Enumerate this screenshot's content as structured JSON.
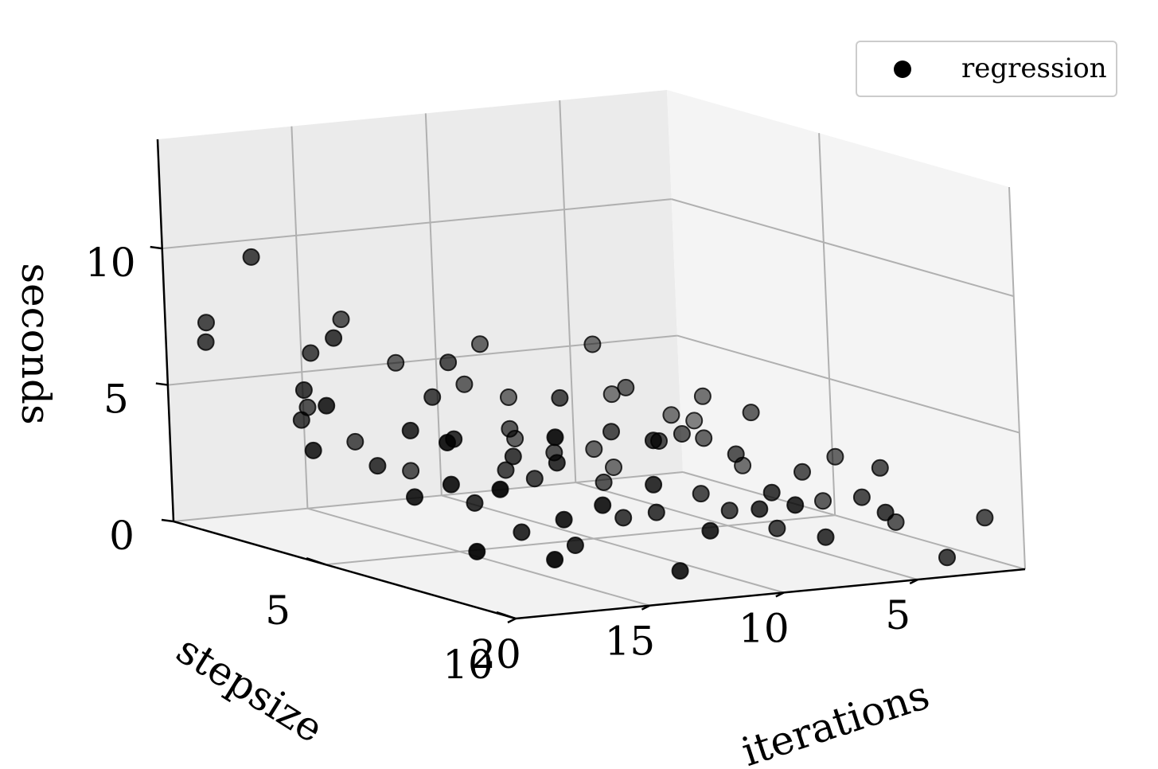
{
  "chart_data": {
    "type": "scatter3d",
    "title": "",
    "xlabel": "iterations",
    "ylabel": "stepsize",
    "zlabel": "seconds",
    "xlim": [
      1,
      20
    ],
    "ylim": [
      1,
      10
    ],
    "zlim": [
      0,
      14
    ],
    "xticks": [
      "5",
      "10",
      "15",
      "20"
    ],
    "yticks": [
      "5",
      "10"
    ],
    "zticks": [
      "0",
      "5",
      "10"
    ],
    "grid": true,
    "legend_position": "top-right",
    "colors": {
      "marker": "#000000",
      "pane": "#f2f2f2",
      "grid": "#b0b0b0"
    },
    "series": [
      {
        "name": "regression",
        "points": [
          [
            1.2,
            1.5,
            2.1
          ],
          [
            3.8,
            1.2,
            3.2
          ],
          [
            5.1,
            2.1,
            1.0
          ],
          [
            7.5,
            1.1,
            3.4
          ],
          [
            9.0,
            2.3,
            2.5
          ],
          [
            11.5,
            1.0,
            5.0
          ],
          [
            13.2,
            2.5,
            1.8
          ],
          [
            15.4,
            1.4,
            3.9
          ],
          [
            17.6,
            2.8,
            4.2
          ],
          [
            19.5,
            1.7,
            6.8
          ],
          [
            2.4,
            3.6,
            1.4
          ],
          [
            4.5,
            4.1,
            2.8
          ],
          [
            6.2,
            3.3,
            4.5
          ],
          [
            8.7,
            4.4,
            1.7
          ],
          [
            10.3,
            3.1,
            3.3
          ],
          [
            12.6,
            4.6,
            2.6
          ],
          [
            14.1,
            3.8,
            5.1
          ],
          [
            16.8,
            4.2,
            3.0
          ],
          [
            18.3,
            3.4,
            5.6
          ],
          [
            20.0,
            4.8,
            4.1
          ],
          [
            1.6,
            5.5,
            2.4
          ],
          [
            3.1,
            6.2,
            1.2
          ],
          [
            5.7,
            5.8,
            3.0
          ],
          [
            7.9,
            6.4,
            2.0
          ],
          [
            9.6,
            5.3,
            4.0
          ],
          [
            11.1,
            6.6,
            1.5
          ],
          [
            13.7,
            5.6,
            3.6
          ],
          [
            15.9,
            6.1,
            2.3
          ],
          [
            17.2,
            5.4,
            4.8
          ],
          [
            19.1,
            6.8,
            3.1
          ],
          [
            2.1,
            7.4,
            0.8
          ],
          [
            4.3,
            8.1,
            2.2
          ],
          [
            6.8,
            7.6,
            1.1
          ],
          [
            8.2,
            8.5,
            2.9
          ],
          [
            10.7,
            7.2,
            1.9
          ],
          [
            12.3,
            8.3,
            3.5
          ],
          [
            14.6,
            7.8,
            1.3
          ],
          [
            16.1,
            8.6,
            2.7
          ],
          [
            18.7,
            7.5,
            3.8
          ],
          [
            19.8,
            8.9,
            2.0
          ],
          [
            1.3,
            9.2,
            1.6
          ],
          [
            3.6,
            9.8,
            0.6
          ],
          [
            5.4,
            9.5,
            2.3
          ],
          [
            7.1,
            9.1,
            1.4
          ],
          [
            9.3,
            9.9,
            3.1
          ],
          [
            11.8,
            9.4,
            2.2
          ],
          [
            13.4,
            9.7,
            1.0
          ],
          [
            15.2,
            9.0,
            3.3
          ],
          [
            17.9,
            9.6,
            1.8
          ],
          [
            19.4,
            9.3,
            4.4
          ],
          [
            2.8,
            2.9,
            3.7
          ],
          [
            6.5,
            2.6,
            2.0
          ],
          [
            10.1,
            1.8,
            4.4
          ],
          [
            14.8,
            2.2,
            2.9
          ],
          [
            18.9,
            1.3,
            7.3
          ],
          [
            4.1,
            5.1,
            4.1
          ],
          [
            8.4,
            5.7,
            3.7
          ],
          [
            12.1,
            5.0,
            2.4
          ],
          [
            16.3,
            5.9,
            4.6
          ],
          [
            20.0,
            5.2,
            5.9
          ],
          [
            3.3,
            7.9,
            3.1
          ],
          [
            7.7,
            7.0,
            1.6
          ],
          [
            11.4,
            7.7,
            4.8
          ],
          [
            15.6,
            7.1,
            1.6
          ],
          [
            19.2,
            7.8,
            5.5
          ],
          [
            5.0,
            1.6,
            5.3
          ],
          [
            9.8,
            3.9,
            2.7
          ],
          [
            13.9,
            6.9,
            3.9
          ],
          [
            17.4,
            3.6,
            7.5
          ],
          [
            18.1,
            2.0,
            9.9
          ],
          [
            8.9,
            1.4,
            5.6
          ],
          [
            12.9,
            3.4,
            6.1
          ],
          [
            16.6,
            2.4,
            6.4
          ],
          [
            14.3,
            1.6,
            7.1
          ],
          [
            10.9,
            4.9,
            5.2
          ],
          [
            6.0,
            4.6,
            3.3
          ],
          [
            2.6,
            1.9,
            2.6
          ],
          [
            4.8,
            6.9,
            2.7
          ],
          [
            9.1,
            8.8,
            2.5
          ],
          [
            17.0,
            9.1,
            6.0
          ]
        ]
      }
    ]
  }
}
